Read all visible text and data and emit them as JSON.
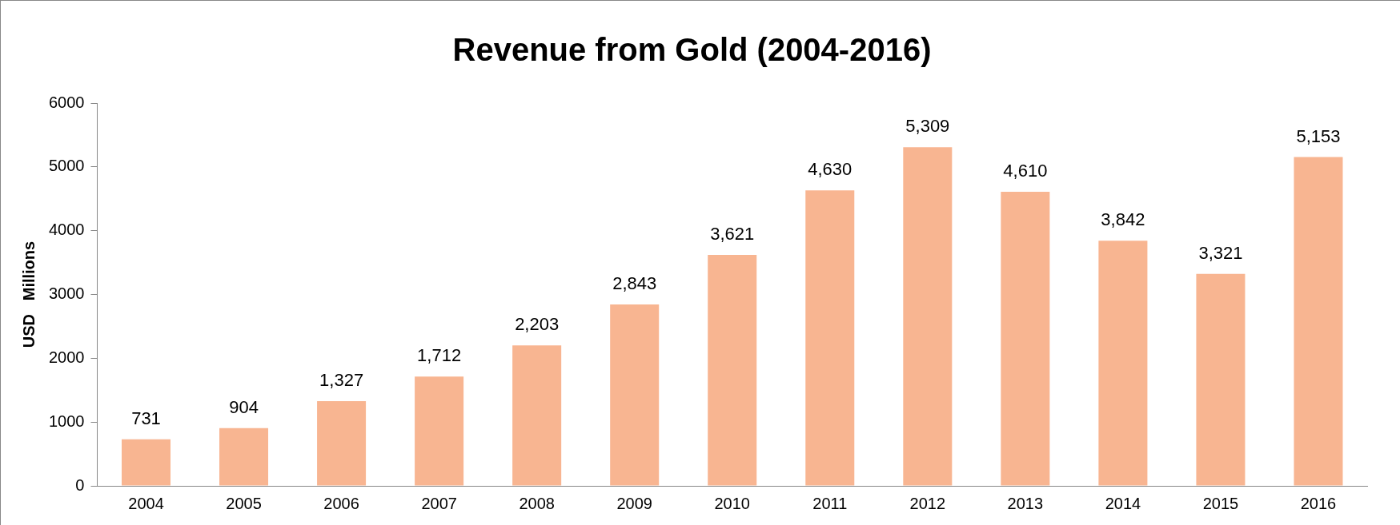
{
  "chart_data": {
    "type": "bar",
    "title": "Revenue from Gold (2004-2016)",
    "ylabel": "USD   Millions",
    "categories": [
      "2004",
      "2005",
      "2006",
      "2007",
      "2008",
      "2009",
      "2010",
      "2011",
      "2012",
      "2013",
      "2014",
      "2015",
      "2016"
    ],
    "values": [
      731,
      904,
      1327,
      1712,
      2203,
      2843,
      3621,
      4630,
      5309,
      4610,
      3842,
      3321,
      5153
    ],
    "color": "#f8b591",
    "ylim": [
      0,
      6000
    ],
    "yticks": [
      0,
      1000,
      2000,
      3000,
      4000,
      5000,
      6000
    ],
    "value_labels": [
      "731",
      "904",
      "1,327",
      "1,712",
      "2,203",
      "2,843",
      "3,621",
      "4,630",
      "5,309",
      "4,610",
      "3,842",
      "3,321",
      "5,153"
    ],
    "grid": false,
    "legend": false
  }
}
